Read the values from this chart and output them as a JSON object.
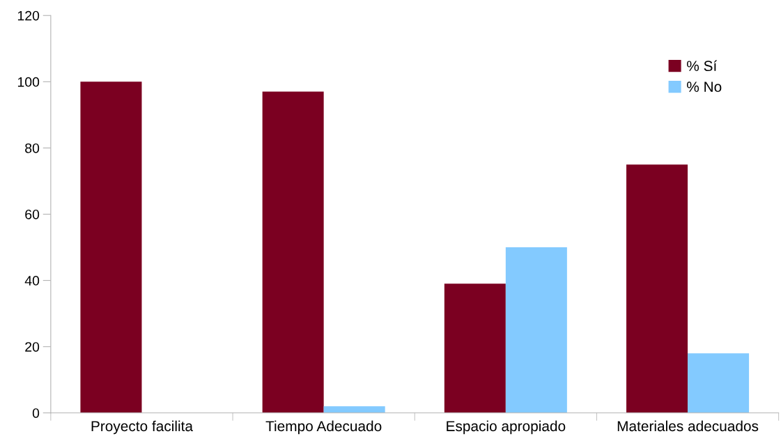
{
  "chart_data": {
    "type": "bar",
    "categories": [
      "Proyecto facilita",
      "Tiempo Adecuado",
      "Espacio apropiado",
      "Materiales adecuados"
    ],
    "series": [
      {
        "name": "% Sí",
        "color": "#7b0021",
        "values": [
          100,
          97,
          39,
          75
        ]
      },
      {
        "name": "% No",
        "color": "#83caff",
        "values": [
          0,
          2,
          50,
          18
        ]
      }
    ],
    "ylim": [
      0,
      120
    ],
    "yticks": [
      0,
      20,
      40,
      60,
      80,
      100,
      120
    ],
    "grid": false,
    "legend": "top right"
  }
}
